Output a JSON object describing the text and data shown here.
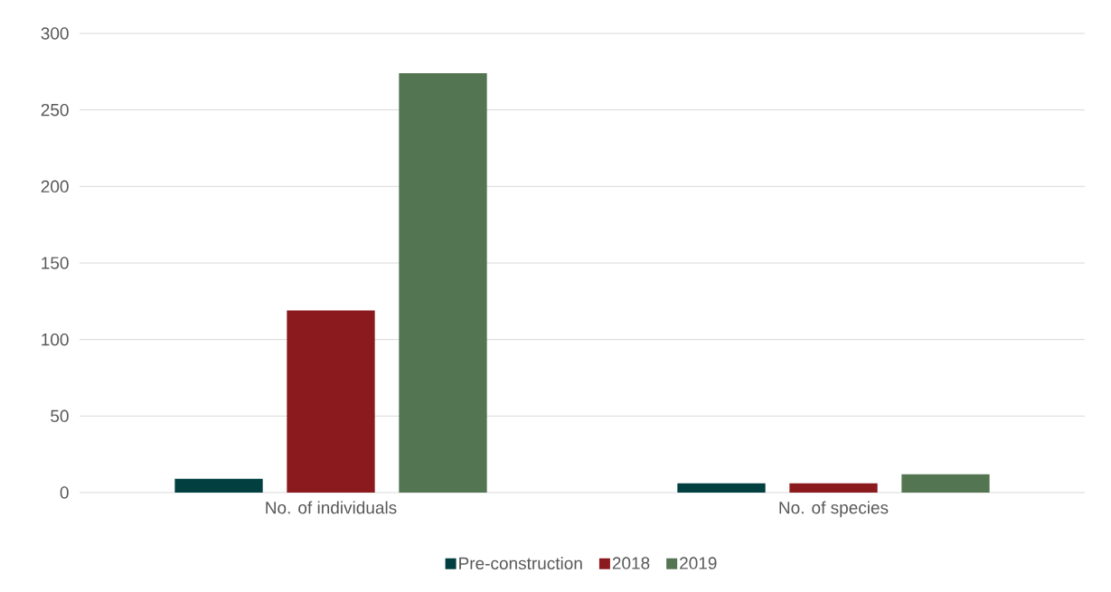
{
  "chart_data": {
    "type": "bar",
    "categories": [
      "No. of individuals",
      "No. of species"
    ],
    "series": [
      {
        "name": "Pre-construction",
        "color": "#013f40",
        "values": [
          9,
          6
        ]
      },
      {
        "name": "2018",
        "color": "#8a1a1d",
        "values": [
          119,
          6
        ]
      },
      {
        "name": "2019",
        "color": "#537551",
        "values": [
          274,
          12
        ]
      }
    ],
    "ylim": [
      0,
      300
    ],
    "yticks": [
      0,
      50,
      100,
      150,
      200,
      250,
      300
    ],
    "grid": "y",
    "legend": "bottom"
  }
}
